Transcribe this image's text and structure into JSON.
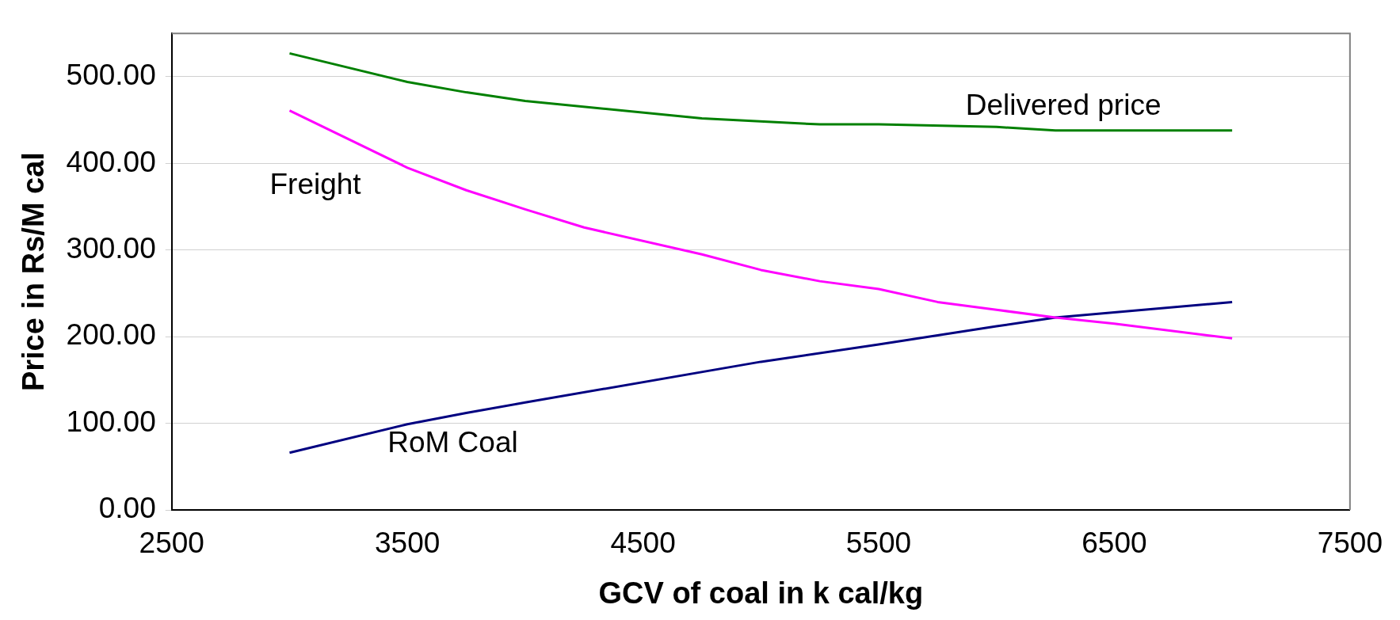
{
  "chart_data": {
    "type": "line",
    "xlabel": "GCV of coal in k cal/kg",
    "ylabel": "Price in Rs/M cal",
    "xlim": [
      2500,
      7500
    ],
    "xticks": [
      2500,
      3500,
      4500,
      5500,
      6500,
      7500
    ],
    "ylim": [
      0,
      550
    ],
    "yticks": [
      {
        "value": 0,
        "label": "0.00"
      },
      {
        "value": 100,
        "label": "100.00"
      },
      {
        "value": 200,
        "label": "200.00"
      },
      {
        "value": 300,
        "label": "300.00"
      },
      {
        "value": 400,
        "label": "400.00"
      },
      {
        "value": 500,
        "label": "500.00"
      }
    ],
    "grid": "y",
    "legend": false,
    "marker": "none",
    "line_style": "solid",
    "series": [
      {
        "name": "Delivered price",
        "color": "#008000",
        "x": [
          3000,
          3500,
          3750,
          4000,
          4750,
          5250,
          5500,
          6000,
          6250,
          7000
        ],
        "values": [
          527,
          494,
          482,
          472,
          452,
          445,
          445,
          442,
          438,
          438
        ]
      },
      {
        "name": "Freight",
        "color": "#ff00ff",
        "x": [
          3000,
          3500,
          3750,
          4000,
          4250,
          4750,
          5000,
          5250,
          5500,
          5750,
          6000,
          6250,
          6500,
          7000
        ],
        "values": [
          461,
          395,
          369,
          347,
          326,
          295,
          277,
          264,
          255,
          240,
          231,
          222,
          215,
          198
        ]
      },
      {
        "name": "RoM Coal",
        "color": "#000080",
        "x": [
          3000,
          3500,
          3750,
          4000,
          5000,
          5500,
          6000,
          6250,
          7000
        ],
        "values": [
          66,
          99,
          112,
          124,
          171,
          191,
          212,
          222,
          240
        ]
      }
    ]
  }
}
